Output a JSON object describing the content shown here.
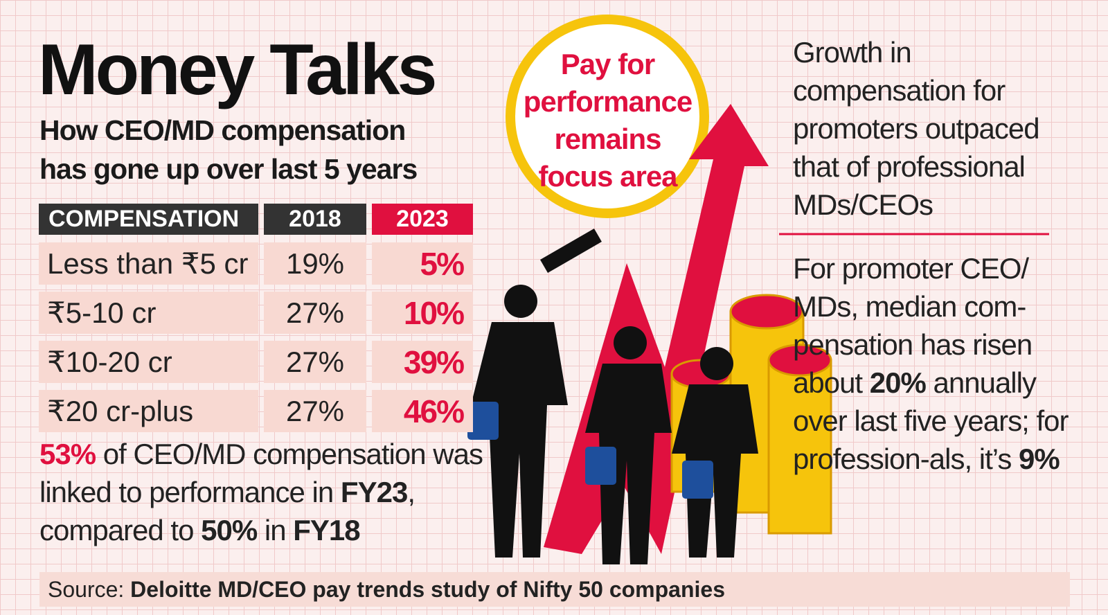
{
  "header": {
    "title": "Money Talks",
    "subtitle": "How CEO/MD compensation has gone up over last 5 years"
  },
  "table": {
    "columns": [
      "COMPENSATION",
      "2018",
      "2023"
    ],
    "rows": [
      [
        "Less than ₹5 cr",
        "19%",
        "5%"
      ],
      [
        "₹5-10 cr",
        "27%",
        "10%"
      ],
      [
        "₹10-20 cr",
        "27%",
        "39%"
      ],
      [
        "₹20 cr-plus",
        "27%",
        "46%"
      ]
    ]
  },
  "note": [
    "53%",
    " of CEO/MD compensation was linked to performance in ",
    "FY23",
    ", compared to ",
    "50%",
    " in ",
    "FY18"
  ],
  "badge": "Pay for performance remains focus area",
  "growth": "Growth in compensation for promoters outpaced that of professional MDs/CEOs",
  "detail": [
    "For promoter CEO/ MDs, median com-pensation has risen about ",
    "20%",
    " annually over last five years; for profession-als, it’s ",
    "9%"
  ],
  "source": {
    "label": "Source:",
    "text": "Deloitte MD/CEO pay trends study of Nifty 50 companies"
  }
}
